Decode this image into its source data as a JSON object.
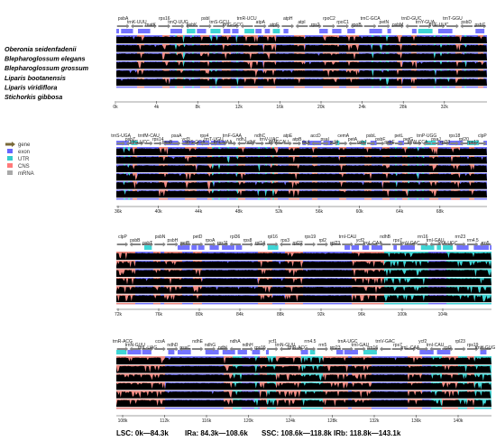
{
  "species": [
    "Oberonia seidenfadenii",
    "Blepharoglossum elegans",
    "Blepharoglossum grossum",
    "Liparis bootanensis",
    "Liparis viridiflora",
    "Stichorkis gibbosa"
  ],
  "legend": [
    {
      "label": "gene",
      "color": "#7f7f7f",
      "icon": "gene-arrow-icon"
    },
    {
      "label": "exon",
      "color": "#6666ff"
    },
    {
      "label": "UTR",
      "color": "#33cccc"
    },
    {
      "label": "CNS",
      "color": "#ff7a7a"
    },
    {
      "label": "mRNA",
      "color": "#a9a9a9"
    }
  ],
  "colors": {
    "exon": "#7373ff",
    "utr": "#3fd6d6",
    "cns": "#f28a82",
    "gene": "#858585",
    "profile": "#000000",
    "valley": "#ffffff"
  },
  "panels": [
    {
      "ticks": [
        "0k",
        "4k",
        "8k",
        "12k",
        "16k",
        "20k",
        "24k",
        "28k",
        "32k"
      ],
      "genes": [
        "psbA",
        "trnK-UUU",
        "matK",
        "rps16",
        "trnQ-UUG",
        "psbK",
        "psbI",
        "trnS-GCU",
        "trnG-GCC",
        "trnR-UCU",
        "atpA",
        "atpF",
        "atpH",
        "atpI",
        "rps2",
        "rpoC2",
        "rpoC1",
        "rpoB",
        "trnC-GCA",
        "petN",
        "psbM",
        "trnD-GUC",
        "trnY-GUA",
        "trnE-UUC",
        "trnT-GGU",
        "psbD",
        "psbC"
      ]
    },
    {
      "ticks": [
        "36k",
        "40k",
        "44k",
        "48k",
        "52k",
        "56k",
        "60k",
        "64k",
        "68k"
      ],
      "genes": [
        "trnS-UGA",
        "psbZ",
        "trnG-UCC",
        "trnfM-CAU",
        "rps14",
        "psaB",
        "psaA",
        "ycf3",
        "trnS-GGA",
        "rps4",
        "trnT-UGU",
        "trnL-UAA",
        "trnF-GAA",
        "ndhJ",
        "ndhK",
        "ndhC",
        "trnV-UAC",
        "trnM-CAU",
        "atpE",
        "atpB",
        "rbcL",
        "accD",
        "psaI",
        "ycf4",
        "cemA",
        "petA",
        "psbJ",
        "psbL",
        "psbF",
        "psbE",
        "petL",
        "petG",
        "trnW-CCA",
        "trnP-UGG",
        "psaJ",
        "rpl33",
        "rps18",
        "rpl20",
        "rps12",
        "clpP"
      ]
    },
    {
      "ticks": [
        "72k",
        "76k",
        "80k",
        "84k",
        "88k",
        "92k",
        "96k",
        "100k",
        "104k"
      ],
      "genes": [
        "clpP",
        "psbB",
        "psbT",
        "psbN",
        "psbH",
        "petB",
        "petD",
        "rpoA",
        "rps11",
        "rpl36",
        "rps8",
        "rpl14",
        "rpl16",
        "rps3",
        "rpl22",
        "rps19",
        "rpl2",
        "rpl23",
        "trnI-CAU",
        "ycf2",
        "trnL-CAA",
        "ndhB",
        "rps7",
        "trnV-GAC",
        "rrn16",
        "trnI-GAU",
        "trnA-UGC",
        "rrn23",
        "rrn4.5",
        "rrn5"
      ]
    },
    {
      "ticks": [
        "108k",
        "112k",
        "116k",
        "120k",
        "124k",
        "128k",
        "132k",
        "136k",
        "140k"
      ],
      "genes": [
        "trnR-ACG",
        "trnN-GUU",
        "trnL-UAG",
        "ccsA",
        "ndhD",
        "psaC",
        "ndhE",
        "ndhG",
        "ndhI",
        "ndhA",
        "ndhH",
        "rps15",
        "ycf1",
        "trnN-GUU",
        "trnR-ACG",
        "rrn4.5",
        "rrn5",
        "rrn23",
        "trnA-UGC",
        "trnI-GAU",
        "rrn16",
        "trnV-GAC",
        "rps7",
        "trnL-CAA",
        "ycf2",
        "trnI-CAU",
        "rpl2",
        "rpl23",
        "rps19",
        "trnH-GUG"
      ]
    }
  ],
  "regions": [
    {
      "name": "LSC",
      "range": "0k—84.3k"
    },
    {
      "name": "IRa",
      "range": "84.3k—108.6k"
    },
    {
      "name": "SSC",
      "range": "108.6k—118.8k"
    },
    {
      "name": "IRb",
      "range": "118.8k—143.1k"
    }
  ]
}
